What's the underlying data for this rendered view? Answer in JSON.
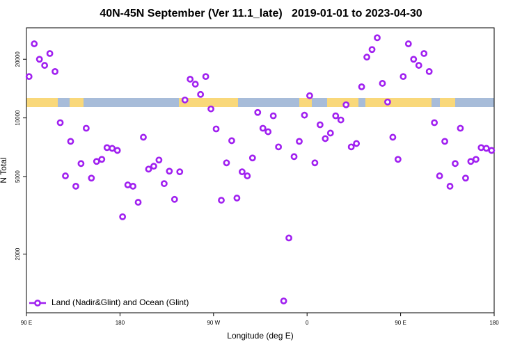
{
  "chart_data": {
    "type": "scatter",
    "title": "40N-45N September (Ver 11.1_late)   2019-01-01 to 2023-04-30",
    "x_label": "Longitude (deg E)",
    "y_label": "N Total",
    "xlim": [
      90,
      540
    ],
    "xticks": [
      {
        "value": 90,
        "label": "90 E"
      },
      180,
      {
        "value": 270,
        "label": "90 W"
      },
      {
        "value": 360,
        "label": "0"
      },
      {
        "value": 450,
        "label": "90 E"
      },
      {
        "value": 540,
        "label": "180"
      }
    ],
    "ylim": [
      1000,
      29000
    ],
    "log_y": true,
    "yticks": [
      2000,
      5000,
      10000,
      20000
    ],
    "legend": "bottom-left",
    "series": [
      {
        "name": "Land (Nadir&Glint) and Ocean (Glint)",
        "color": "#a020f0",
        "x": [
          92.5,
          97.5,
          102.5,
          107.5,
          112.5,
          117.5,
          122.5,
          127.5,
          132.5,
          137.5,
          142.5,
          147.5,
          152.5,
          157.5,
          162.5,
          167.5,
          172.5,
          177.5,
          182.5,
          187.5,
          192.5,
          197.5,
          202.5,
          207.5,
          212.5,
          217.5,
          222.5,
          227.5,
          232.5,
          237.5,
          242.5,
          247.5,
          252.5,
          257.5,
          262.5,
          267.5,
          272.5,
          277.5,
          282.5,
          287.5,
          292.5,
          297.5,
          302.5,
          307.5,
          312.5,
          317.5,
          322.5,
          327.5,
          332.5,
          337.5,
          342.5,
          347.5,
          352.5,
          357.5,
          362.5,
          367.5,
          372.5,
          377.5,
          382.5,
          387.5,
          392.5,
          397.5,
          402.5,
          407.5,
          412.5,
          417.5,
          422.5,
          427.5,
          432.5,
          437.5,
          442.5,
          447.5,
          452.5,
          457.5,
          462.5,
          467.5,
          472.5,
          477.5,
          482.5,
          487.5,
          492.5,
          497.5,
          502.5,
          507.5,
          512.5,
          517.5,
          522.5,
          527.5,
          532.5,
          537.5
        ],
        "values": [
          16300,
          24000,
          20000,
          18600,
          21400,
          17300,
          9450,
          5040,
          7580,
          4460,
          5830,
          8850,
          4910,
          5980,
          6130,
          7040,
          6980,
          6810,
          3110,
          4530,
          4460,
          3690,
          7960,
          5460,
          5650,
          6080,
          4600,
          5330,
          3820,
          5290,
          12360,
          15800,
          14900,
          13200,
          16300,
          11120,
          8780,
          3780,
          5880,
          7640,
          3880,
          5290,
          5040,
          6230,
          10670,
          8850,
          8490,
          10250,
          7100,
          1150,
          2420,
          6330,
          7580,
          10330,
          13000,
          5880,
          9220,
          7830,
          8360,
          10250,
          9760,
          11680,
          7100,
          7390,
          14440,
          20510,
          22440,
          25780,
          15040,
          12070,
          7960,
          6130,
          16300,
          24000,
          20000,
          18600,
          21400,
          17300,
          9450,
          5040,
          7580,
          4460,
          5830,
          8850,
          4910,
          5980,
          6130,
          7040,
          6980,
          6810
        ]
      }
    ]
  }
}
